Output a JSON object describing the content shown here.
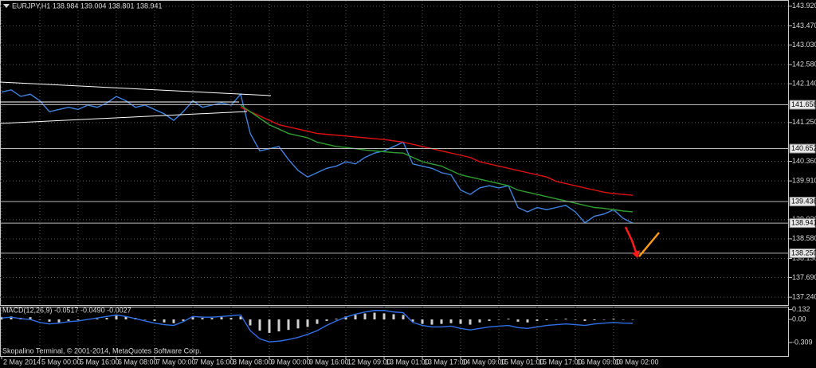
{
  "chart_data": [
    {
      "type": "line",
      "title": "EURJPY,H1  138.984 139.004 138.801 138.941",
      "categories": [
        "2 May 2014",
        null,
        null,
        null,
        "5 May 00:00",
        null,
        null,
        null,
        "5 May 16:00",
        null,
        null,
        null,
        "6 May 08:00",
        null,
        null,
        null,
        "7 May 00:00",
        null,
        null,
        null,
        "7 May 16:00",
        null,
        null,
        null,
        "8 May 08:00",
        null,
        null,
        null,
        "9 May 00:00",
        null,
        null,
        null,
        "9 May 16:00",
        null,
        null,
        null,
        "12 May 09:00",
        null,
        null,
        null,
        "13 May 01:00",
        null,
        null,
        null,
        "13 May 17:00",
        null,
        null,
        null,
        "14 May 09:00",
        null,
        null,
        null,
        "15 May 01:00",
        null,
        null,
        null,
        "15 May 17:00",
        null,
        null,
        null,
        "16 May 09:00",
        null,
        null,
        null,
        "19 May 02:00",
        null,
        null
      ],
      "series": [
        {
          "color": "#3b82e0",
          "values": [
            141.95,
            142.0,
            141.85,
            141.9,
            141.75,
            141.5,
            141.55,
            141.6,
            141.55,
            141.65,
            141.6,
            141.7,
            141.85,
            141.75,
            141.6,
            141.65,
            141.55,
            141.45,
            141.3,
            141.5,
            141.75,
            141.6,
            141.65,
            141.7,
            141.65,
            141.9,
            141.0,
            140.6,
            140.65,
            140.7,
            140.4,
            140.15,
            140.0,
            140.1,
            140.2,
            140.25,
            140.35,
            140.3,
            140.45,
            140.55,
            140.6,
            140.7,
            140.8,
            140.3,
            140.25,
            140.2,
            140.1,
            140.05,
            139.7,
            139.6,
            139.75,
            139.8,
            139.75,
            139.8,
            139.3,
            139.2,
            139.3,
            139.25,
            139.3,
            139.35,
            139.2,
            138.95,
            139.1,
            139.15,
            139.25,
            139.05,
            138.941
          ]
        },
        {
          "color": "#e01010",
          "values": [
            null,
            null,
            null,
            null,
            null,
            null,
            null,
            null,
            null,
            null,
            null,
            null,
            null,
            null,
            null,
            null,
            null,
            null,
            null,
            null,
            null,
            null,
            null,
            null,
            null,
            141.6,
            141.5,
            141.4,
            141.3,
            141.2,
            141.15,
            141.1,
            141.05,
            141.0,
            140.98,
            140.96,
            140.94,
            140.92,
            140.9,
            140.88,
            140.86,
            140.83,
            140.8,
            140.75,
            140.7,
            140.65,
            140.6,
            140.55,
            140.5,
            140.45,
            140.35,
            140.3,
            140.25,
            140.2,
            140.15,
            140.1,
            140.05,
            140.0,
            139.9,
            139.85,
            139.8,
            139.75,
            139.7,
            139.65,
            139.62,
            139.6,
            139.58
          ]
        },
        {
          "color": "#2e9e2e",
          "values": [
            null,
            null,
            null,
            null,
            null,
            null,
            null,
            null,
            null,
            null,
            null,
            null,
            null,
            null,
            null,
            null,
            null,
            null,
            null,
            null,
            null,
            null,
            null,
            null,
            null,
            141.65,
            141.5,
            141.35,
            141.2,
            141.1,
            141.0,
            140.95,
            140.9,
            140.8,
            140.75,
            140.7,
            140.68,
            140.65,
            140.62,
            140.6,
            140.58,
            140.56,
            140.55,
            140.45,
            140.35,
            140.3,
            140.25,
            140.15,
            140.05,
            140.0,
            139.95,
            139.9,
            139.85,
            139.8,
            139.7,
            139.65,
            139.6,
            139.55,
            139.5,
            139.45,
            139.4,
            139.35,
            139.3,
            139.28,
            139.25,
            139.22,
            139.2
          ]
        }
      ],
      "ylim": [
        137.06,
        144.045
      ],
      "yticks": [
        {
          "value": 143.92,
          "label": "143.920"
        },
        {
          "value": 143.47,
          "label": "143.470"
        },
        {
          "value": 143.03,
          "label": "143.030"
        },
        {
          "value": 142.58,
          "label": "142.580"
        },
        {
          "value": 142.14,
          "label": "142.140"
        },
        {
          "value": 141.25,
          "label": "141.250"
        },
        {
          "value": 140.36,
          "label": "140.360"
        },
        {
          "value": 139.91,
          "label": "139.910"
        },
        {
          "value": 139.02,
          "label": "139.020"
        },
        {
          "value": 138.58,
          "label": "138.580"
        },
        {
          "value": 138.13,
          "label": "138.130"
        },
        {
          "value": 137.69,
          "label": "137.690"
        },
        {
          "value": 137.24,
          "label": "137.240"
        }
      ],
      "levels": [
        141.658,
        140.652,
        139.436,
        138.941,
        {
          "value": 138.25,
          "label": "138.250"
        }
      ],
      "grid": true
    },
    {
      "type": "bar",
      "title": "MACD(12,26,9) -0.0517 -0.0490 -0.0027",
      "annotation": "Skopalino Terminal, © 2001-2014, MetaQuotes Software Corp.",
      "color": "#d0d0d0",
      "values": [
        0.03,
        0.04,
        0.02,
        0.03,
        0,
        -0.03,
        -0.04,
        -0.02,
        -0.01,
        0,
        0.01,
        0.02,
        0.05,
        0.04,
        0.02,
        0,
        -0.02,
        -0.04,
        -0.05,
        -0.02,
        0.03,
        0.02,
        0.02,
        0.03,
        0.02,
        0.04,
        -0.08,
        -0.15,
        -0.18,
        -0.16,
        -0.14,
        -0.12,
        -0.1,
        -0.06,
        -0.02,
        0.01,
        0.04,
        0.06,
        0.08,
        0.09,
        0.08,
        0.07,
        0.06,
        -0.03,
        -0.06,
        -0.07,
        -0.06,
        -0.05,
        -0.06,
        -0.07,
        -0.04,
        -0.02,
        0,
        0.01,
        -0.03,
        -0.04,
        -0.02,
        -0.01,
        0,
        0.01,
        0,
        -0.02,
        -0.01,
        0,
        0.01,
        0,
        -0.0027
      ],
      "series": [
        {
          "color": "#2f6fe8",
          "values": [
            0.02,
            0.03,
            0.01,
            0,
            -0.04,
            -0.06,
            -0.05,
            -0.03,
            -0.02,
            0,
            0.02,
            0.04,
            0.06,
            0.04,
            0.01,
            -0.02,
            -0.05,
            -0.07,
            -0.08,
            -0.03,
            0.04,
            0.03,
            0.03,
            0.04,
            0.05,
            0.06,
            -0.15,
            -0.26,
            -0.3,
            -0.29,
            -0.27,
            -0.24,
            -0.2,
            -0.15,
            -0.08,
            -0.02,
            0.03,
            0.07,
            0.1,
            0.12,
            0.12,
            0.1,
            0.09,
            -0.04,
            -0.08,
            -0.1,
            -0.1,
            -0.09,
            -0.12,
            -0.14,
            -0.12,
            -0.1,
            -0.09,
            -0.08,
            -0.11,
            -0.12,
            -0.1,
            -0.08,
            -0.07,
            -0.06,
            -0.07,
            -0.08,
            -0.06,
            -0.05,
            -0.04,
            -0.05,
            -0.0517
          ]
        }
      ],
      "ylim": [
        -0.33,
        0.16
      ],
      "yticks": [
        0.132,
        {
          "value": 0,
          "label": "0.00"
        },
        -0.309
      ]
    }
  ]
}
